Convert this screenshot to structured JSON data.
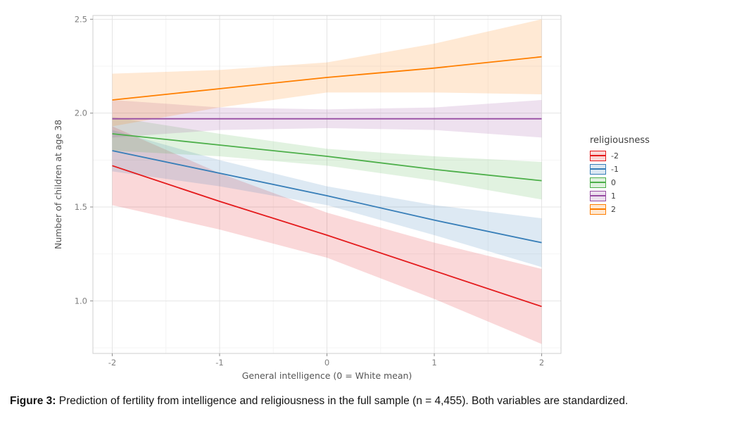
{
  "figure": {
    "label": "Figure 3:",
    "caption": " Prediction of fertility from intelligence and religiousness in the full sample (n = 4,455). Both variables are standardized."
  },
  "chart_data": {
    "type": "line",
    "title": "",
    "xlabel": "General intelligence (0 = White mean)",
    "ylabel": "Number of children at age 38",
    "xlim": [
      -2.18,
      2.18
    ],
    "ylim": [
      0.72,
      2.52
    ],
    "xticks": [
      -2,
      -1,
      0,
      1,
      2
    ],
    "xtick_labels": [
      "-2",
      "-1",
      "0",
      "1",
      "2"
    ],
    "yticks": [
      1.0,
      1.5,
      2.0,
      2.5
    ],
    "ytick_labels": [
      "1.0",
      "1.5",
      "2.0",
      "2.5"
    ],
    "x_minor": [
      -1.5,
      -0.5,
      0.5,
      1.5
    ],
    "y_minor": [
      0.75,
      1.25,
      1.75,
      2.25
    ],
    "grid": true,
    "legend": {
      "title": "religiousness",
      "position": "right"
    },
    "ribbon_opacity": 0.17,
    "x": [
      -2,
      -1,
      0,
      1,
      2
    ],
    "series": [
      {
        "name": "-2",
        "color": "#E41A1C",
        "values": [
          1.72,
          1.53,
          1.35,
          1.16,
          0.97
        ],
        "ribbon_lower": [
          1.51,
          1.38,
          1.23,
          1.01,
          0.77
        ],
        "ribbon_upper": [
          1.93,
          1.68,
          1.47,
          1.31,
          1.17
        ]
      },
      {
        "name": "-1",
        "color": "#377EB8",
        "values": [
          1.8,
          1.68,
          1.56,
          1.43,
          1.31
        ],
        "ribbon_lower": [
          1.69,
          1.61,
          1.51,
          1.35,
          1.18
        ],
        "ribbon_upper": [
          1.91,
          1.75,
          1.61,
          1.51,
          1.44
        ]
      },
      {
        "name": "0",
        "color": "#4DAF4A",
        "values": [
          1.89,
          1.83,
          1.77,
          1.7,
          1.64
        ],
        "ribbon_lower": [
          1.8,
          1.77,
          1.72,
          1.64,
          1.54
        ],
        "ribbon_upper": [
          1.98,
          1.89,
          1.81,
          1.77,
          1.74
        ]
      },
      {
        "name": "1",
        "color": "#984EA3",
        "values": [
          1.97,
          1.97,
          1.97,
          1.97,
          1.97
        ],
        "ribbon_lower": [
          1.87,
          1.91,
          1.92,
          1.91,
          1.87
        ],
        "ribbon_upper": [
          2.07,
          2.03,
          2.02,
          2.03,
          2.07
        ]
      },
      {
        "name": "2",
        "color": "#FF7F00",
        "values": [
          2.07,
          2.13,
          2.19,
          2.24,
          2.3
        ],
        "ribbon_lower": [
          1.93,
          2.03,
          2.11,
          2.11,
          2.1
        ],
        "ribbon_upper": [
          2.21,
          2.23,
          2.27,
          2.37,
          2.5
        ]
      }
    ]
  }
}
